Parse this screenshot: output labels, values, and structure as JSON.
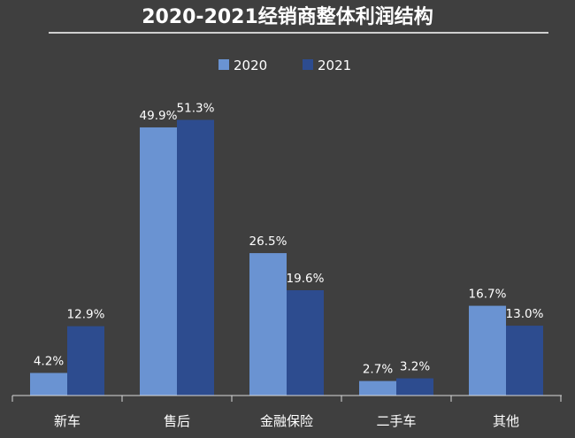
{
  "chart_data": {
    "type": "bar",
    "title": "2020-2021经销商整体利润结构",
    "categories": [
      "新车",
      "售后",
      "金融保险",
      "二手车",
      "其他"
    ],
    "series": [
      {
        "name": "2020",
        "values": [
          4.2,
          49.9,
          26.5,
          2.7,
          16.7
        ],
        "labels": [
          "4.2%",
          "49.9%",
          "26.5%",
          "2.7%",
          "16.7%"
        ],
        "color": "#6a93d2"
      },
      {
        "name": "2021",
        "values": [
          12.9,
          51.3,
          19.6,
          3.2,
          13.0
        ],
        "labels": [
          "12.9%",
          "51.3%",
          "19.6%",
          "3.2%",
          "13.0%"
        ],
        "color": "#2d4c8f"
      }
    ],
    "ylim": [
      0,
      55
    ],
    "grid": false,
    "legend_position": "top-center"
  },
  "colors": {
    "background": "#3f3f3f",
    "text": "#ffffff",
    "axis": "#d9d9d9"
  }
}
